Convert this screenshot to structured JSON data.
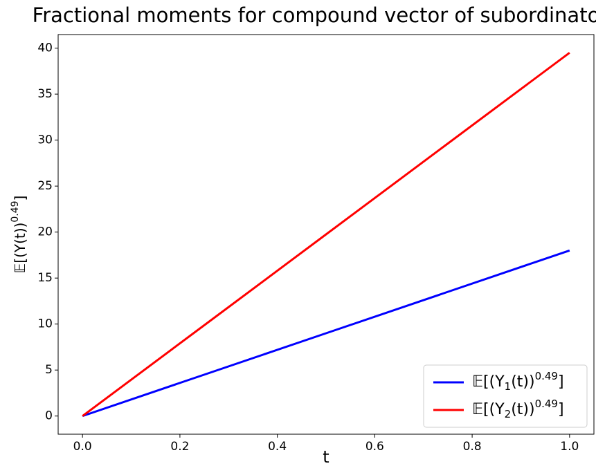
{
  "chart_data": {
    "type": "line",
    "title": "Fractional moments for compound vector of subordinators",
    "xlabel": "t",
    "ylabel": {
      "base": "𝔼[(Y(t))",
      "sup": "0.49",
      "end": "]"
    },
    "x": [
      0,
      0.25,
      0.5,
      0.75,
      1
    ],
    "series": [
      {
        "name": {
          "base": "𝔼[(Y",
          "sub": "1",
          "mid": "(t))",
          "sup": "0.49",
          "end": "]"
        },
        "color": "#0000ff",
        "values": [
          0,
          4.5,
          9,
          13.5,
          18
        ]
      },
      {
        "name": {
          "base": "𝔼[(Y",
          "sub": "2",
          "mid": "(t))",
          "sup": "0.49",
          "end": "]"
        },
        "color": "#ff0000",
        "values": [
          0,
          9.875,
          19.75,
          29.625,
          39.5
        ]
      }
    ],
    "xlim": [
      -0.05,
      1.05
    ],
    "ylim": [
      -1.975,
      41.475
    ],
    "xticks": [
      {
        "value": 0,
        "label": "0.0"
      },
      0.2,
      0.4,
      0.6,
      0.8,
      {
        "value": 1,
        "label": "1.0"
      }
    ],
    "yticks": [
      0,
      5,
      10,
      15,
      20,
      25,
      30,
      35,
      40
    ],
    "grid": false,
    "legend": "lower right"
  }
}
